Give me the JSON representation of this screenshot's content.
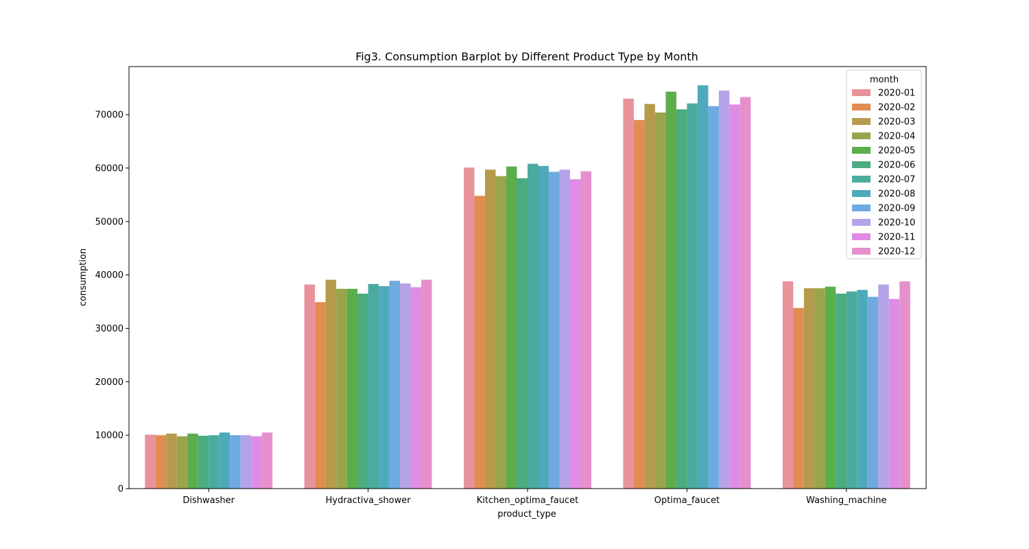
{
  "chart_data": {
    "type": "bar",
    "title": "Fig3. Consumption Barplot by Different Product Type by Month",
    "xlabel": "product_type",
    "ylabel": "consumption",
    "categories": [
      "Dishwasher",
      "Hydractiva_shower",
      "Kitchen_optima_faucet",
      "Optima_faucet",
      "Washing_machine"
    ],
    "ylim": [
      0,
      79000
    ],
    "yticks": [
      0,
      10000,
      20000,
      30000,
      40000,
      50000,
      60000,
      70000
    ],
    "grid": false,
    "legend": {
      "title": "month",
      "placement": "top-right"
    },
    "series": [
      {
        "name": "2020-01",
        "color": "#e8939b",
        "values": [
          10100,
          38200,
          60100,
          73000,
          38800
        ]
      },
      {
        "name": "2020-02",
        "color": "#e18d51",
        "values": [
          10000,
          34900,
          54800,
          69000,
          33800
        ]
      },
      {
        "name": "2020-03",
        "color": "#b69b4d",
        "values": [
          10300,
          39100,
          59700,
          72000,
          37500
        ]
      },
      {
        "name": "2020-04",
        "color": "#9aa54b",
        "values": [
          9800,
          37400,
          58500,
          70400,
          37500
        ]
      },
      {
        "name": "2020-05",
        "color": "#5cad4b",
        "values": [
          10300,
          37400,
          60300,
          74300,
          37800
        ]
      },
      {
        "name": "2020-06",
        "color": "#4aac7f",
        "values": [
          9900,
          36500,
          58100,
          71000,
          36500
        ]
      },
      {
        "name": "2020-07",
        "color": "#4bab9e",
        "values": [
          10000,
          38300,
          60800,
          72100,
          36900
        ]
      },
      {
        "name": "2020-08",
        "color": "#4ea9bb",
        "values": [
          10500,
          37900,
          60400,
          75500,
          37200
        ]
      },
      {
        "name": "2020-09",
        "color": "#6eaae0",
        "values": [
          10000,
          38900,
          59300,
          71600,
          35900
        ]
      },
      {
        "name": "2020-10",
        "color": "#b4a3e9",
        "values": [
          10000,
          38400,
          59700,
          74500,
          38200
        ]
      },
      {
        "name": "2020-11",
        "color": "#df8ce4",
        "values": [
          9800,
          37700,
          57900,
          71900,
          35500
        ]
      },
      {
        "name": "2020-12",
        "color": "#e590cc",
        "values": [
          10500,
          39100,
          59400,
          73300,
          38800
        ]
      }
    ]
  }
}
